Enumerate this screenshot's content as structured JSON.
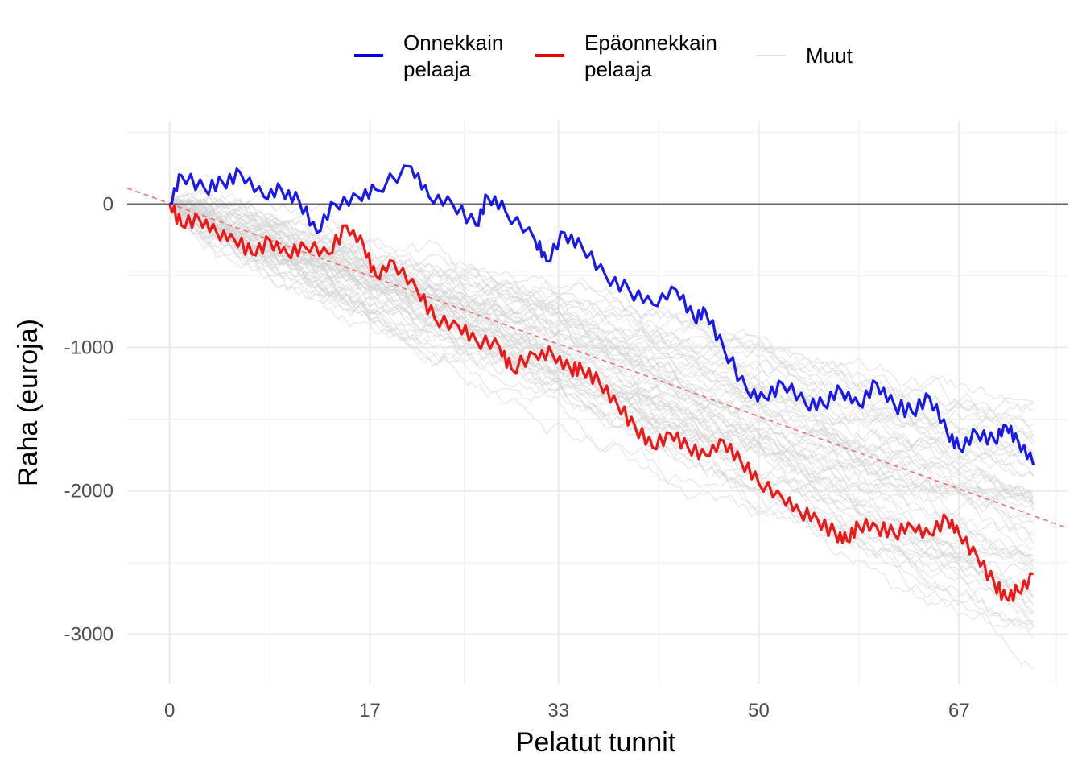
{
  "chart_data": {
    "type": "line",
    "title": "",
    "xlabel": "Pelatut tunnit",
    "ylabel": "Raha (euroja)",
    "xlim": [
      -3.6,
      76.2
    ],
    "ylim": [
      -3350,
      580
    ],
    "x_ticks": [
      0,
      17,
      33,
      50,
      67
    ],
    "x_tick_labels": [
      "0",
      "17",
      "33",
      "50",
      "67"
    ],
    "y_ticks": [
      0,
      -1000,
      -2000,
      -3000
    ],
    "y_tick_labels": [
      "0",
      "-1000",
      "-2000",
      "-3000"
    ],
    "grid": true,
    "legend_position": "top",
    "legend": [
      {
        "label_line1": "Onnekkain",
        "label_line2": "pelaaja",
        "color": "#0000ee"
      },
      {
        "label_line1": "Epäonnekkain",
        "label_line2": "pelaaja",
        "color": "#ee0000"
      },
      {
        "label_line1": "Muut",
        "label_line2": "",
        "color": "#d3d3d3"
      }
    ],
    "reference_line": {
      "y": 0,
      "color": "#666666"
    },
    "trend_line": {
      "x": [
        -3.6,
        76.2
      ],
      "y": [
        110,
        -2260
      ],
      "color": "#f07070",
      "dashed": true
    },
    "other_players": {
      "count": 60,
      "start_x": 0,
      "end_x": 73.3,
      "end_y_range": [
        -3000,
        -1550
      ],
      "color": "#d3d3d3"
    },
    "series": [
      {
        "name": "Onnekkain pelaaja",
        "color": "#0000ee",
        "x": [
          0,
          1,
          3,
          4.5,
          6,
          8,
          9.5,
          11,
          12.5,
          14,
          16,
          17.5,
          20.5,
          22,
          24,
          26,
          27,
          28.5,
          31,
          32,
          33.5,
          35,
          37,
          39,
          41,
          43,
          44.5,
          45.5,
          47,
          49,
          50.5,
          52,
          54,
          55.5,
          57,
          58.5,
          60,
          61.5,
          63,
          64.5,
          66,
          67,
          68.5,
          70,
          71,
          72,
          73.3
        ],
        "y": [
          0,
          200,
          100,
          150,
          220,
          50,
          100,
          20,
          -200,
          0,
          50,
          100,
          260,
          50,
          0,
          -150,
          50,
          -50,
          -250,
          -400,
          -200,
          -300,
          -500,
          -600,
          -700,
          -600,
          -800,
          -750,
          -1000,
          -1300,
          -1350,
          -1250,
          -1400,
          -1400,
          -1300,
          -1400,
          -1250,
          -1400,
          -1450,
          -1350,
          -1600,
          -1700,
          -1600,
          -1650,
          -1550,
          -1650,
          -1820
        ]
      },
      {
        "name": "Epäonnekkain pelaaja",
        "color": "#ee0000",
        "x": [
          0,
          1,
          2.5,
          4,
          5.5,
          7,
          8.5,
          10,
          11.5,
          13.5,
          15,
          16.5,
          17.5,
          19,
          21,
          22.5,
          24.5,
          26,
          28,
          29,
          31,
          32.5,
          34,
          35,
          36.5,
          38,
          39.5,
          41,
          42.5,
          44,
          45.5,
          47,
          48.5,
          50,
          52,
          53.5,
          55,
          56.5,
          57.5,
          58.5,
          60,
          61.5,
          63,
          64.5,
          66,
          67,
          68.5,
          70,
          71,
          72,
          73.3
        ],
        "y": [
          0,
          -150,
          -100,
          -200,
          -250,
          -350,
          -250,
          -350,
          -300,
          -350,
          -150,
          -300,
          -500,
          -400,
          -600,
          -800,
          -850,
          -950,
          -1000,
          -1150,
          -1050,
          -1050,
          -1150,
          -1150,
          -1250,
          -1400,
          -1550,
          -1700,
          -1600,
          -1700,
          -1750,
          -1650,
          -1800,
          -1950,
          -2050,
          -2150,
          -2200,
          -2300,
          -2350,
          -2250,
          -2250,
          -2300,
          -2250,
          -2300,
          -2200,
          -2300,
          -2450,
          -2650,
          -2750,
          -2700,
          -2580
        ]
      }
    ]
  }
}
